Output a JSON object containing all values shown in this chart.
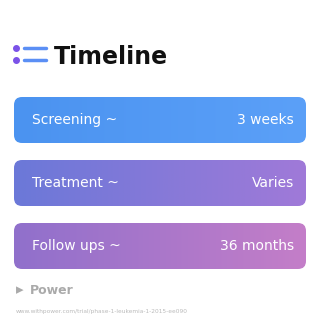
{
  "title": "Timeline",
  "background_color": "#ffffff",
  "rows": [
    {
      "label": "Screening ~",
      "value": "3 weeks",
      "color_left": "#4B93F0",
      "color_right": "#5BA0F8"
    },
    {
      "label": "Treatment ~",
      "value": "Varies",
      "color_left": "#6B78D8",
      "color_right": "#A07AD8"
    },
    {
      "label": "Follow ups ~",
      "value": "36 months",
      "color_left": "#9070CC",
      "color_right": "#C47EC8"
    }
  ],
  "title_color": "#111111",
  "icon_color_dot": "#7B52E8",
  "icon_color_line": "#5B8FF5",
  "text_color": "#ffffff",
  "watermark": "Power",
  "watermark_color": "#aaaaaa",
  "url_text": "www.withpower.com/trial/phase-1-leukemia-1-2015-ee090",
  "url_color": "#bbbbbb",
  "title_fontsize": 17,
  "label_fontsize": 10,
  "value_fontsize": 10
}
